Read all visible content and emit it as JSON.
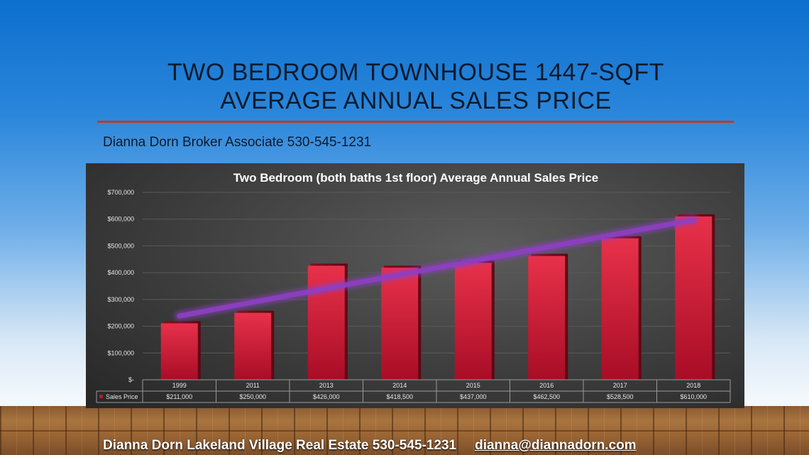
{
  "slide": {
    "title_line1": "TWO BEDROOM TOWNHOUSE 1447-SQFT",
    "title_line2": "AVERAGE ANNUAL  SALES PRICE",
    "subtitle": "Dianna Dorn Broker Associate 530-545-1231",
    "footer_text": "Dianna Dorn  Lakeland Village Real Estate  530-545-1231",
    "footer_email": "dianna@diannadorn.com"
  },
  "chart_data": {
    "type": "bar",
    "title": "Two  Bedroom  (both  baths  1st floor)  Average  Annual  Sales  Price",
    "categories": [
      "1999",
      "2011",
      "2013",
      "2014",
      "2015",
      "2016",
      "2017",
      "2018"
    ],
    "series": [
      {
        "name": "Sales Price",
        "values": [
          211000,
          250000,
          426000,
          418500,
          437000,
          462500,
          528500,
          610000
        ],
        "color": "#c8102e"
      }
    ],
    "data_table_labels": [
      "$211,000",
      "$250,000",
      "$426,000",
      "$418,500",
      "$437,000",
      "$462,500",
      "$528,500",
      "$610,000"
    ],
    "y_ticks": [
      "$-",
      "$100,000",
      "$200,000",
      "$300,000",
      "$400,000",
      "$500,000",
      "$600,000",
      "$700,000"
    ],
    "ylim": [
      0,
      700000
    ],
    "trendline": {
      "color": "#8e3fc4"
    },
    "grid": true
  }
}
